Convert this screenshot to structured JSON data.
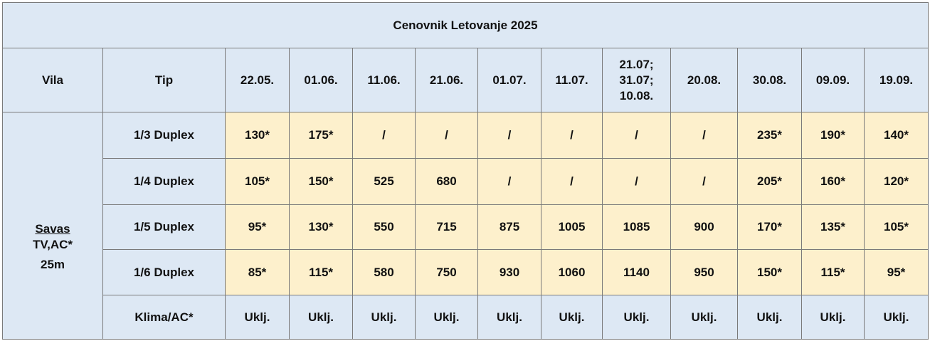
{
  "title": "Cenovnik Letovanje 2025",
  "header": {
    "vila": "Vila",
    "tip": "Tip",
    "dates": [
      [
        "22.05."
      ],
      [
        "01.06."
      ],
      [
        "11.06."
      ],
      [
        "21.06."
      ],
      [
        "01.07."
      ],
      [
        "11.07."
      ],
      [
        "21.07;",
        "31.07;",
        "10.08."
      ],
      [
        "20.08."
      ],
      [
        "30.08."
      ],
      [
        "09.09."
      ],
      [
        "19.09."
      ]
    ]
  },
  "vila": {
    "name": "Savas",
    "lines": [
      "TV,AC*",
      "25m"
    ]
  },
  "rows": [
    {
      "tip": "1/3 Duplex",
      "cells": [
        "130*",
        "175*",
        "/",
        "/",
        "/",
        "/",
        "/",
        "/",
        "235*",
        "190*",
        "140*"
      ]
    },
    {
      "tip": "1/4 Duplex",
      "cells": [
        "105*",
        "150*",
        "525",
        "680",
        "/",
        "/",
        "/",
        "/",
        "205*",
        "160*",
        "120*"
      ]
    },
    {
      "tip": "1/5 Duplex",
      "cells": [
        "95*",
        "130*",
        "550",
        "715",
        "875",
        "1005",
        "1085",
        "900",
        "170*",
        "135*",
        "105*"
      ]
    },
    {
      "tip": "1/6 Duplex",
      "cells": [
        "85*",
        "115*",
        "580",
        "750",
        "930",
        "1060",
        "1140",
        "950",
        "150*",
        "115*",
        "95*"
      ]
    },
    {
      "tip": "Klima/AC*",
      "cells": [
        "Uklj.",
        "Uklj.",
        "Uklj.",
        "Uklj.",
        "Uklj.",
        "Uklj.",
        "Uklj.",
        "Uklj.",
        "Uklj.",
        "Uklj.",
        "Uklj."
      ]
    }
  ]
}
